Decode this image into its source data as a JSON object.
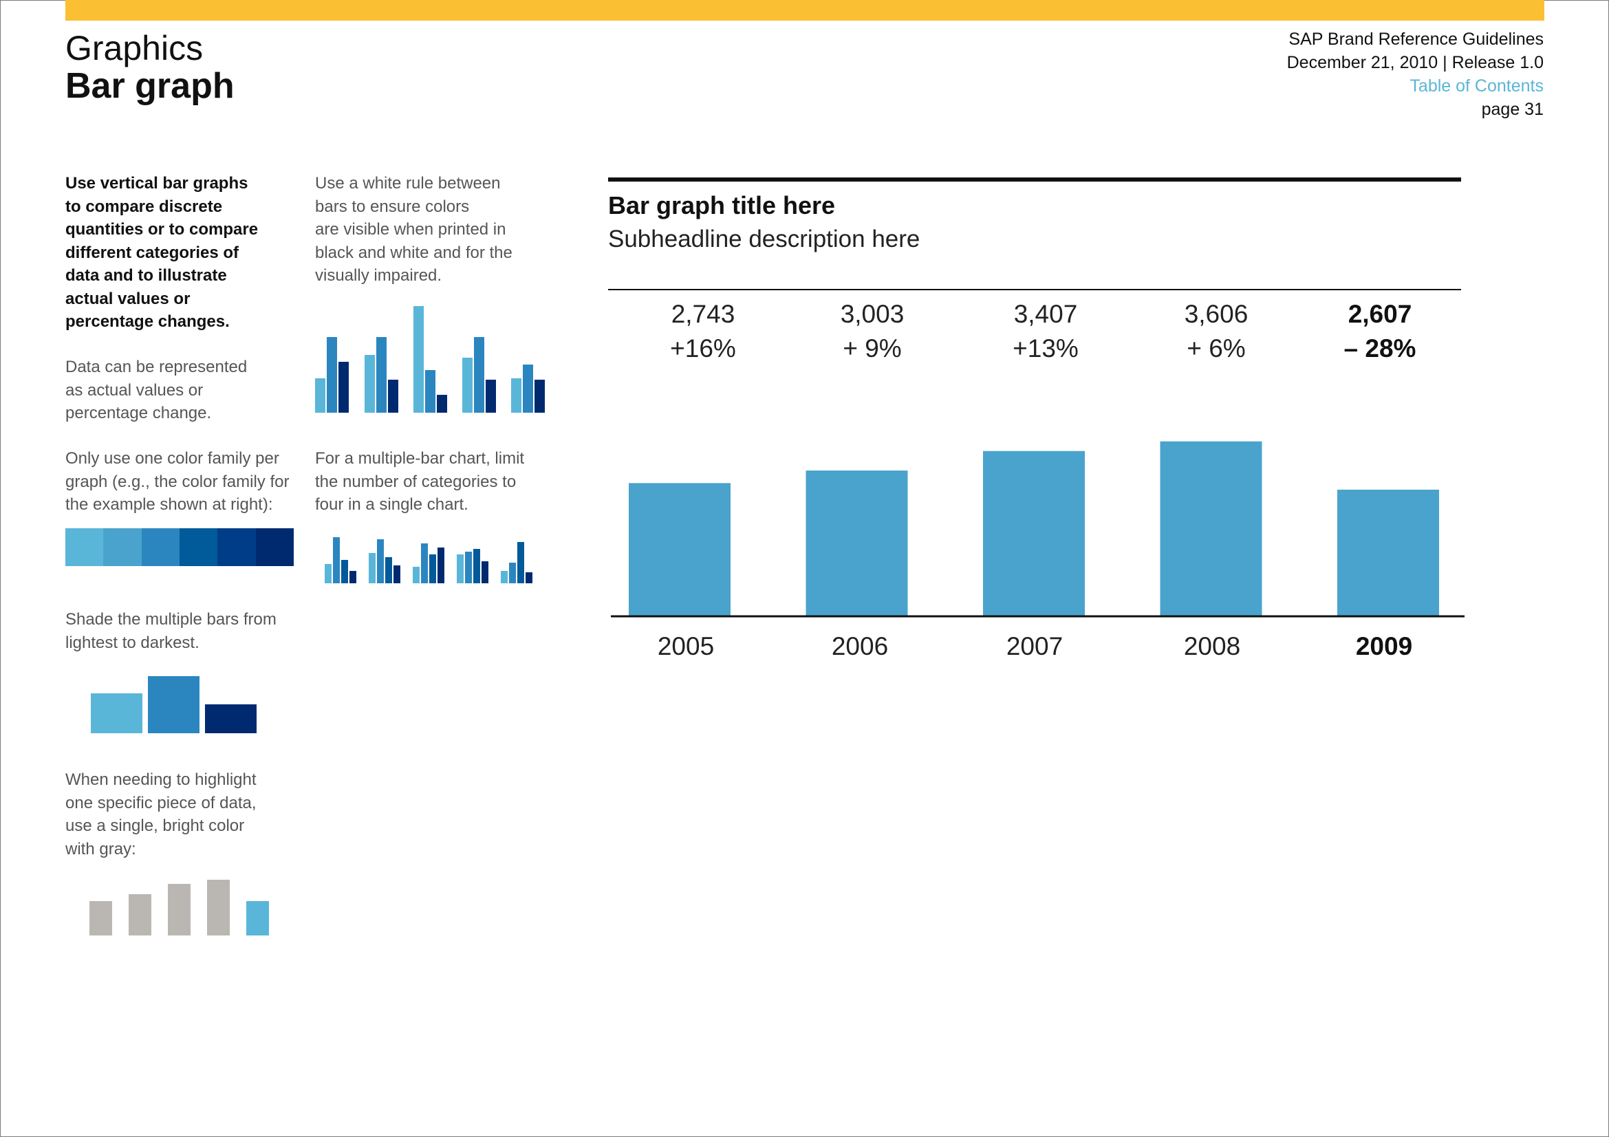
{
  "header": {
    "section": "Graphics",
    "title": "Bar graph",
    "meta": {
      "doc": "SAP Brand Reference Guidelines",
      "date_release": "December 21, 2010 | Release 1.0",
      "toc_link": "Table of Contents",
      "page": "page 31"
    }
  },
  "colors": {
    "accent_bar": "#fbbf33",
    "toc_link": "#5ab6d6",
    "bar_main": "#4aa3cc",
    "blue_family": [
      "#5ab6d9",
      "#4aa3cc",
      "#2b86c0",
      "#015a9a",
      "#003d88",
      "#002a70"
    ],
    "gray": "#bab7b2",
    "highlight": "#5ab6d9"
  },
  "left_column": {
    "intro_bold": [
      "Use vertical bar graphs",
      "to compare discrete",
      "quantities or to compare",
      "different categories of",
      "data and to illustrate",
      "actual values or",
      "percentage changes."
    ],
    "data_note": [
      "Data can be represented",
      "as actual values or",
      "percentage change."
    ],
    "color_note": [
      "Only use one color family per",
      "graph (e.g., the color family for",
      "the example shown at right):"
    ],
    "shade_note": [
      "Shade the multiple bars from",
      "lightest to darkest."
    ],
    "highlight_note": [
      "When needing to highlight",
      "one specific piece of data,",
      "use a single, bright color",
      "with gray:"
    ]
  },
  "mid_column": {
    "rule_note": [
      "Use a white rule between",
      "bars to ensure colors",
      "are visible when printed in",
      "black and white and for the",
      "visually impaired."
    ],
    "limit_note": [
      "For a multiple-bar chart, limit",
      "the number of categories to",
      "four in a single chart."
    ]
  },
  "chart_data": {
    "type": "bar",
    "title": "Bar graph title here",
    "subtitle": "Subheadline description here",
    "categories": [
      "2005",
      "2006",
      "2007",
      "2008",
      "2009"
    ],
    "values": [
      2743,
      3003,
      3407,
      3606,
      2607
    ],
    "value_labels": [
      "2,743",
      "3,003",
      "3,407",
      "3,606",
      "2,607"
    ],
    "change_labels": [
      "+16%",
      "+ 9%",
      "+13%",
      "+ 6%",
      "– 28%"
    ],
    "highlight_category": "2009",
    "ylim": [
      0,
      4200
    ],
    "grid": false,
    "legend": "none"
  }
}
